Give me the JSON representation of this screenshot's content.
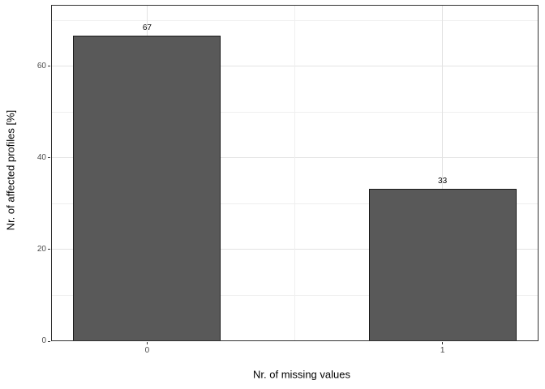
{
  "chart_data": {
    "type": "bar",
    "title": "",
    "xlabel": "Nr. of missing values",
    "ylabel": "Nr. of affected profiles [%]",
    "categories": [
      "0",
      "1"
    ],
    "x_positions": [
      0,
      1
    ],
    "values": [
      66.7,
      33.3
    ],
    "bar_labels": [
      "67",
      "33"
    ],
    "bar_width": 0.5,
    "xlim": [
      -0.325,
      1.325
    ],
    "ylim": [
      0,
      73.4
    ],
    "y_major_ticks": [
      0,
      20,
      40,
      60
    ],
    "y_minor_gridlines": [
      10,
      30,
      50,
      70
    ],
    "x_minor_gridlines": [
      0.5
    ],
    "grid": true,
    "legend_position": "none",
    "colors": {
      "bar_fill": "#595959",
      "bar_stroke": "#1a1a1a",
      "grid_major": "#e3e3e3",
      "grid_minor": "#efefef",
      "panel_border": "#333333",
      "panel_bg": "#ffffff",
      "tick_label": "#4d4d4d",
      "axis_title": "#000000",
      "tick_mark": "#333333",
      "background": "#ffffff"
    }
  }
}
